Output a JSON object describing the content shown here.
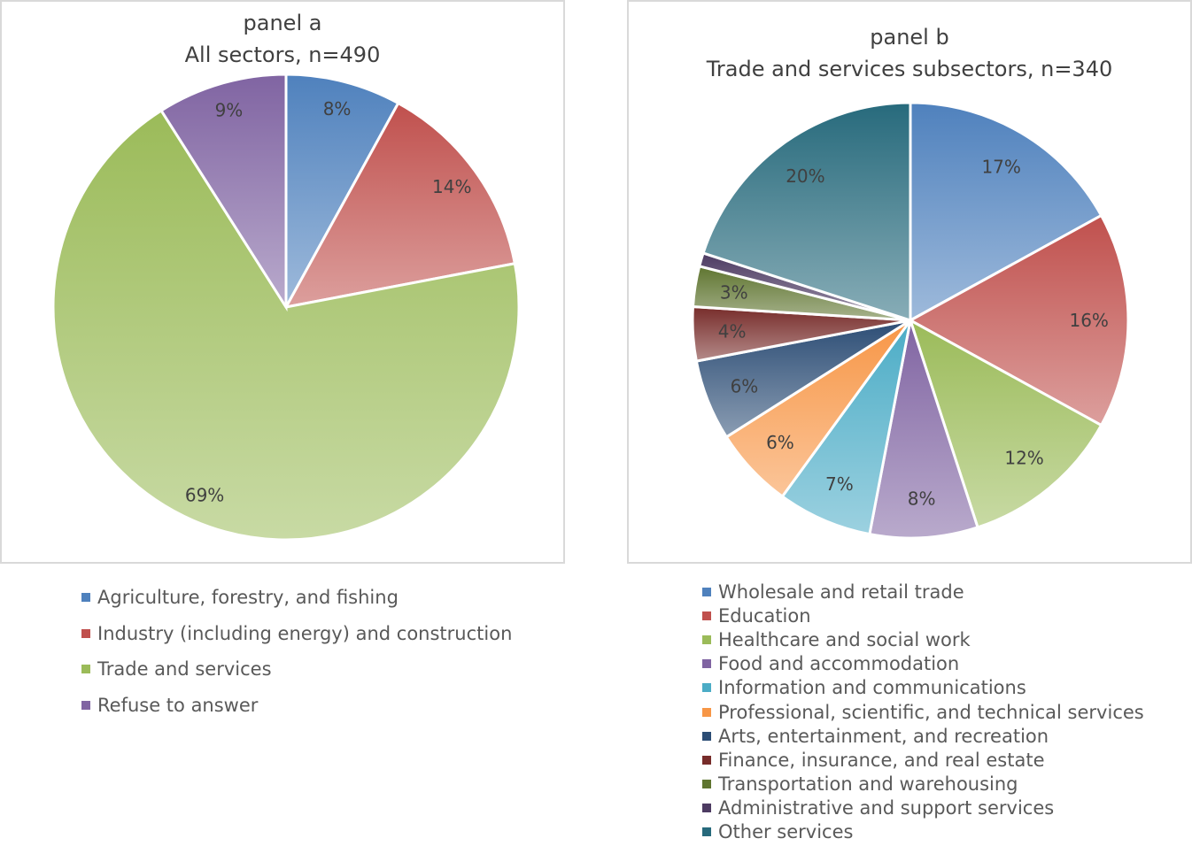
{
  "chart_data": [
    {
      "type": "pie",
      "title_line1": "panel a",
      "title_line2": "All sectors, n=490",
      "slices": [
        {
          "name": "Agriculture, forestry, and fishing",
          "value": 8,
          "label": "8%",
          "color": "#4f81bd"
        },
        {
          "name": "Industry (including energy) and construction",
          "value": 14,
          "label": "14%",
          "color": "#c0504d"
        },
        {
          "name": "Trade and services",
          "value": 69,
          "label": "69%",
          "color": "#9bbb59"
        },
        {
          "name": "Refuse to answer",
          "value": 9,
          "label": "9%",
          "color": "#8064a2"
        }
      ]
    },
    {
      "type": "pie",
      "title_line1": "panel b",
      "title_line2": "Trade and services subsectors, n=340",
      "slices": [
        {
          "name": "Wholesale and retail trade",
          "value": 17,
          "label": "17%",
          "color": "#4f81bd"
        },
        {
          "name": "Education",
          "value": 16,
          "label": "16%",
          "color": "#c0504d"
        },
        {
          "name": "Healthcare and social work",
          "value": 12,
          "label": "12%",
          "color": "#9bbb59"
        },
        {
          "name": "Food and accommodation",
          "value": 8,
          "label": "8%",
          "color": "#8064a2"
        },
        {
          "name": "Information and communications",
          "value": 7,
          "label": "7%",
          "color": "#4bacc6"
        },
        {
          "name": "Professional, scientific, and technical services",
          "value": 6,
          "label": "6%",
          "color": "#f79646"
        },
        {
          "name": "Arts, entertainment, and recreation",
          "value": 6,
          "label": "6%",
          "color": "#2c4d75"
        },
        {
          "name": "Finance, insurance, and real estate",
          "value": 4,
          "label": "4%",
          "color": "#772c2a"
        },
        {
          "name": "Transportation and warehousing",
          "value": 3,
          "label": "3%",
          "color": "#5f7530"
        },
        {
          "name": "Administrative and support services",
          "value": 1,
          "label": "",
          "color": "#4d3b62"
        },
        {
          "name": "Other services",
          "value": 20,
          "label": "20%",
          "color": "#276a7c"
        }
      ]
    }
  ]
}
